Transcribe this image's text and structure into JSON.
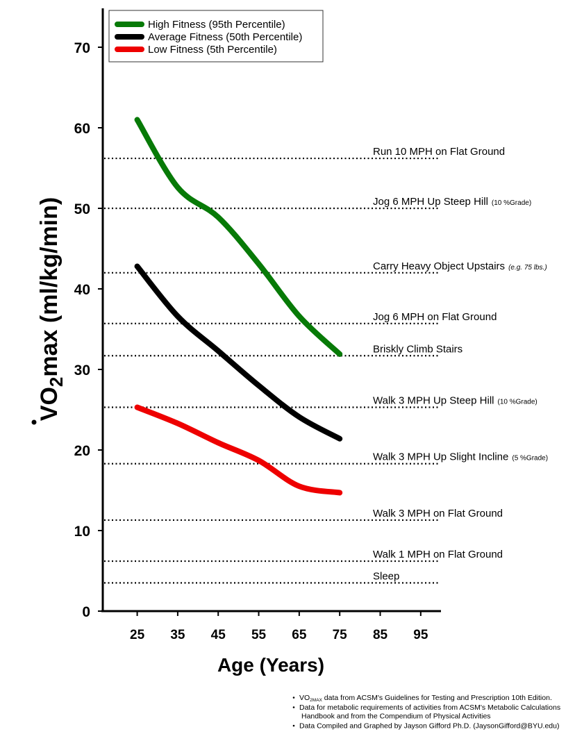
{
  "chart_data": {
    "type": "line",
    "xlabel": "Age (Years)",
    "ylabel": "VO2max (ml/kg/min)",
    "ylabel_parts": {
      "main": "VO",
      "sub": "2",
      "rest": "max (ml/kg/min)"
    },
    "x": [
      25,
      35,
      45,
      55,
      65,
      75
    ],
    "x_ticks": [
      25,
      35,
      45,
      55,
      65,
      75,
      85,
      95
    ],
    "y_ticks": [
      0,
      10,
      20,
      30,
      40,
      50,
      60,
      70
    ],
    "xlim": [
      16.5,
      100
    ],
    "ylim": [
      0,
      75
    ],
    "grid": false,
    "legend_position": "top-left",
    "series": [
      {
        "name": "High Fitness (95th Percentile)",
        "color": "#077a07",
        "values": [
          61.0,
          52.6,
          48.9,
          43.1,
          36.6,
          31.9
        ]
      },
      {
        "name": "Average Fitness (50th Percentile)",
        "color": "#000000",
        "values": [
          42.8,
          36.6,
          32.3,
          28.0,
          24.1,
          21.4
        ]
      },
      {
        "name": "Low Fitness (5th Percentile)",
        "color": "#ee0000",
        "values": [
          25.3,
          23.3,
          20.9,
          18.7,
          15.5,
          14.7
        ]
      }
    ],
    "reference_lines": [
      {
        "label": "Run 10 MPH on Flat Ground",
        "note": "",
        "note_italic": false,
        "value": 56.2
      },
      {
        "label": "Jog 6 MPH Up Steep Hill",
        "note": "(10 %Grade)",
        "note_italic": false,
        "value": 50.0
      },
      {
        "label": "Carry Heavy Object Upstairs",
        "note": "(e.g. 75 lbs.)",
        "note_italic": true,
        "value": 42.0
      },
      {
        "label": "Jog 6 MPH on Flat Ground",
        "note": "",
        "note_italic": false,
        "value": 35.7
      },
      {
        "label": "Briskly Climb Stairs",
        "note": "",
        "note_italic": false,
        "value": 31.7
      },
      {
        "label": "Walk 3 MPH Up Steep Hill",
        "note": "(10 %Grade)",
        "note_italic": false,
        "value": 25.3
      },
      {
        "label": "Walk 3 MPH Up Slight Incline",
        "note": "(5 %Grade)",
        "note_italic": false,
        "value": 18.3
      },
      {
        "label": "Walk 3 MPH on Flat Ground",
        "note": "",
        "note_italic": false,
        "value": 11.3
      },
      {
        "label": "Walk 1 MPH on Flat Ground",
        "note": "",
        "note_italic": false,
        "value": 6.2
      },
      {
        "label": "Sleep",
        "note": "",
        "note_italic": false,
        "value": 3.5
      }
    ]
  },
  "footnotes": [
    {
      "pre": "VO",
      "sub": "2MAX",
      "text": " data from ACSM's Guidelines for Testing and Prescription 10th Edition."
    },
    {
      "pre": "",
      "sub": "",
      "text": "Data for metabolic requirements of activities from ACSM's Metabolic Calculations",
      "cont": "Handbook and from the Compendium of Physical Activities"
    },
    {
      "pre": "",
      "sub": "",
      "text": "Data Compiled and Graphed by Jayson Gifford Ph.D. (JaysonGifford@BYU.edu)"
    }
  ]
}
